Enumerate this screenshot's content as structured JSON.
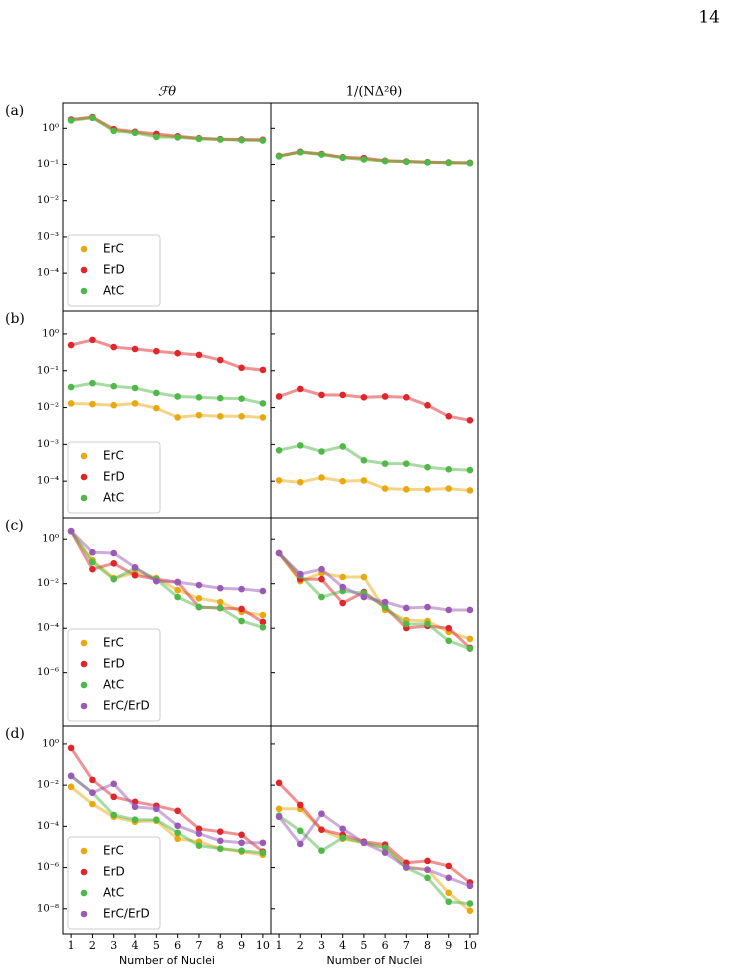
{
  "page_number": "14",
  "column_titles": [
    "ℱθ",
    "1/(NΔ²θ)"
  ],
  "chart_data": [
    {
      "type": "line",
      "label": "(a)",
      "log_y": true,
      "legend": "lower left",
      "x": [
        1,
        2,
        3,
        4,
        5,
        6,
        7,
        8,
        9,
        10
      ],
      "xlim": [
        0.62,
        10.38
      ],
      "ylim": [
        9e-06,
        5
      ],
      "yticks": [
        {
          "value": 1,
          "label": "10⁰"
        },
        {
          "value": 0.1,
          "label": "10⁻¹"
        },
        {
          "value": 0.01,
          "label": "10⁻²"
        },
        {
          "value": 0.001,
          "label": "10⁻³"
        },
        {
          "value": 0.0001,
          "label": "10⁻⁴"
        }
      ],
      "series": [
        {
          "name": "ErC",
          "color": "#e8a90f",
          "values": [
            1.7,
            2.0,
            0.88,
            0.77,
            0.62,
            0.58,
            0.52,
            0.5,
            0.48,
            0.47
          ]
        },
        {
          "name": "ErD",
          "color": "#e0262a",
          "values": [
            1.75,
            2.05,
            0.95,
            0.8,
            0.7,
            0.6,
            0.53,
            0.5,
            0.49,
            0.48
          ]
        },
        {
          "name": "AtC",
          "color": "#4fb848",
          "values": [
            1.65,
            1.95,
            0.85,
            0.75,
            0.58,
            0.56,
            0.51,
            0.49,
            0.47,
            0.46
          ]
        }
      ]
    },
    {
      "type": "line",
      "log_y": true,
      "x": [
        1,
        2,
        3,
        4,
        5,
        6,
        7,
        8,
        9,
        10
      ],
      "xlim": [
        0.62,
        10.38
      ],
      "ylim": [
        9e-06,
        5
      ],
      "yticks": [
        1,
        0.1,
        0.01,
        0.001,
        0.0001
      ],
      "series": [
        {
          "color": "#e8a90f",
          "values": [
            0.17,
            0.22,
            0.19,
            0.155,
            0.14,
            0.125,
            0.12,
            0.115,
            0.112,
            0.11
          ]
        },
        {
          "color": "#e0262a",
          "values": [
            0.172,
            0.225,
            0.195,
            0.158,
            0.15,
            0.127,
            0.121,
            0.116,
            0.113,
            0.111
          ]
        },
        {
          "color": "#4fb848",
          "values": [
            0.168,
            0.218,
            0.188,
            0.153,
            0.138,
            0.124,
            0.119,
            0.114,
            0.111,
            0.109
          ]
        }
      ]
    },
    {
      "type": "line",
      "label": "(b)",
      "log_y": true,
      "legend": "lower left",
      "x": [
        1,
        2,
        3,
        4,
        5,
        6,
        7,
        8,
        9,
        10
      ],
      "xlim": [
        0.62,
        10.38
      ],
      "ylim": [
        1e-05,
        4.2
      ],
      "yticks": [
        {
          "value": 1,
          "label": "10⁰"
        },
        {
          "value": 0.1,
          "label": "10⁻¹"
        },
        {
          "value": 0.01,
          "label": "10⁻²"
        },
        {
          "value": 0.001,
          "label": "10⁻³"
        },
        {
          "value": 0.0001,
          "label": "10⁻⁴"
        }
      ],
      "series": [
        {
          "name": "ErC",
          "color": "#e8a90f",
          "values": [
            0.013,
            0.0124,
            0.0116,
            0.013,
            0.0096,
            0.0054,
            0.0062,
            0.0058,
            0.0058,
            0.0054
          ]
        },
        {
          "name": "ErD",
          "color": "#e0262a",
          "values": [
            0.5,
            0.69,
            0.44,
            0.39,
            0.34,
            0.3,
            0.27,
            0.195,
            0.12,
            0.105
          ]
        },
        {
          "name": "AtC",
          "color": "#4fb848",
          "values": [
            0.036,
            0.046,
            0.038,
            0.034,
            0.025,
            0.02,
            0.019,
            0.018,
            0.0175,
            0.013
          ]
        }
      ]
    },
    {
      "type": "line",
      "log_y": true,
      "x": [
        1,
        2,
        3,
        4,
        5,
        6,
        7,
        8,
        9,
        10
      ],
      "xlim": [
        0.62,
        10.38
      ],
      "ylim": [
        1e-05,
        4.2
      ],
      "yticks": [
        1,
        0.1,
        0.01,
        0.001,
        0.0001
      ],
      "series": [
        {
          "color": "#e8a90f",
          "values": [
            0.000105,
            9.4e-05,
            0.000126,
            0.0001,
            0.000105,
            6.3e-05,
            6e-05,
            6e-05,
            6.3e-05,
            5.6e-05
          ]
        },
        {
          "color": "#e0262a",
          "values": [
            0.02,
            0.032,
            0.022,
            0.022,
            0.019,
            0.02,
            0.019,
            0.0115,
            0.0058,
            0.0045
          ]
        },
        {
          "color": "#4fb848",
          "values": [
            0.00069,
            0.00094,
            0.00064,
            0.00088,
            0.00037,
            0.0003,
            0.0003,
            0.00024,
            0.00021,
            0.0002
          ]
        }
      ]
    },
    {
      "type": "line",
      "label": "(c)",
      "log_y": true,
      "legend": "lower left",
      "x": [
        1,
        2,
        3,
        4,
        5,
        6,
        7,
        8,
        9,
        10
      ],
      "xlim": [
        0.62,
        10.38
      ],
      "ylim": [
        4e-09,
        9
      ],
      "yticks": [
        {
          "value": 1,
          "label": "10⁰"
        },
        {
          "value": 0.01,
          "label": "10⁻²"
        },
        {
          "value": 0.0001,
          "label": "10⁻⁴"
        },
        {
          "value": 1e-06,
          "label": "10⁻⁶"
        }
      ],
      "series": [
        {
          "name": "ErC",
          "color": "#e8a90f",
          "values": [
            2.3,
            0.115,
            0.018,
            0.03,
            0.018,
            0.0051,
            0.0022,
            0.0015,
            0.00054,
            0.00039
          ]
        },
        {
          "name": "ErD",
          "color": "#e0262a",
          "values": [
            2.3,
            0.045,
            0.083,
            0.024,
            0.016,
            0.0118,
            0.00089,
            0.00081,
            0.00073,
            0.00019
          ]
        },
        {
          "name": "AtC",
          "color": "#4fb848",
          "values": [
            2.3,
            0.093,
            0.016,
            0.05,
            0.016,
            0.0025,
            0.00089,
            0.00081,
            0.00021,
            0.00011
          ]
        },
        {
          "name": "ErC/ErD",
          "color": "#9b59b6",
          "values": [
            2.3,
            0.26,
            0.24,
            0.055,
            0.013,
            0.0118,
            0.0087,
            0.0063,
            0.0057,
            0.0047
          ]
        }
      ]
    },
    {
      "type": "line",
      "log_y": true,
      "x": [
        1,
        2,
        3,
        4,
        5,
        6,
        7,
        8,
        9,
        10
      ],
      "xlim": [
        0.62,
        10.38
      ],
      "ylim": [
        4e-09,
        9
      ],
      "yticks": [
        1,
        0.01,
        0.0001,
        1e-06
      ],
      "series": [
        {
          "color": "#e8a90f",
          "values": [
            0.24,
            0.013,
            0.03,
            0.02,
            0.02,
            0.00066,
            0.00023,
            0.00021,
            6.8e-05,
            3.3e-05
          ]
        },
        {
          "color": "#e0262a",
          "values": [
            0.24,
            0.016,
            0.016,
            0.00135,
            0.0042,
            0.00089,
            0.000102,
            0.000126,
            0.0001,
            1.3e-05
          ]
        },
        {
          "color": "#4fb848",
          "values": [
            0.24,
            0.024,
            0.0025,
            0.0047,
            0.0038,
            0.00089,
            0.000155,
            0.000155,
            2.7e-05,
            1.2e-05
          ]
        },
        {
          "color": "#9b59b6",
          "values": [
            0.24,
            0.027,
            0.045,
            0.0071,
            0.0025,
            0.0015,
            0.00081,
            0.00089,
            0.00066,
            0.00066
          ]
        }
      ]
    },
    {
      "type": "line",
      "label": "(d)",
      "log_y": true,
      "legend": "lower left",
      "x": [
        1,
        2,
        3,
        4,
        5,
        6,
        7,
        8,
        9,
        10
      ],
      "xlim": [
        0.62,
        10.38
      ],
      "ylim": [
        6e-10,
        7.4
      ],
      "yticks": [
        {
          "value": 1,
          "label": "10⁰"
        },
        {
          "value": 0.01,
          "label": "10⁻²"
        },
        {
          "value": 0.0001,
          "label": "10⁻⁴"
        },
        {
          "value": 1e-06,
          "label": "10⁻⁶"
        },
        {
          "value": 1e-08,
          "label": "10⁻⁸"
        }
      ],
      "xticks": [
        1,
        2,
        3,
        4,
        5,
        6,
        7,
        8,
        9,
        10
      ],
      "xlabel": "Number of Nuclei",
      "series": [
        {
          "name": "ErC",
          "color": "#e8a90f",
          "values": [
            0.0083,
            0.0012,
            0.00029,
            0.000166,
            0.000187,
            2.5e-05,
            1.8e-05,
            8.3e-06,
            5.9e-06,
            4.2e-06
          ]
        },
        {
          "name": "ErD",
          "color": "#e0262a",
          "values": [
            0.64,
            0.018,
            0.0027,
            0.00155,
            0.001,
            0.00057,
            7.6e-05,
            5.5e-05,
            3.9e-05,
            5.9e-06
          ]
        },
        {
          "name": "AtC",
          "color": "#4fb848",
          "values": [
            0.028,
            0.0043,
            0.00036,
            0.00021,
            0.00021,
            4.9e-05,
            1.15e-05,
            8.3e-06,
            6.6e-06,
            5.3e-06
          ]
        },
        {
          "name": "ErC/ErD",
          "color": "#9b59b6",
          "values": [
            0.028,
            0.0043,
            0.0116,
            0.00089,
            0.00071,
            0.000107,
            4.4e-05,
            2e-05,
            1.6e-05,
            1.6e-05
          ]
        }
      ]
    },
    {
      "type": "line",
      "log_y": true,
      "x": [
        1,
        2,
        3,
        4,
        5,
        6,
        7,
        8,
        9,
        10
      ],
      "xlim": [
        0.62,
        10.38
      ],
      "ylim": [
        6e-10,
        7.4
      ],
      "yticks": [
        1,
        0.01,
        0.0001,
        1e-06,
        1e-08
      ],
      "xticks": [
        1,
        2,
        3,
        4,
        5,
        6,
        7,
        8,
        9,
        10
      ],
      "xlabel": "Number of Nuclei",
      "series": [
        {
          "color": "#e8a90f",
          "values": [
            0.00071,
            0.00071,
            6.9e-05,
            2.5e-05,
            1.6e-05,
            9.2e-06,
            1.1e-06,
            7.9e-07,
            6e-08,
            8.1e-09
          ]
        },
        {
          "color": "#e0262a",
          "values": [
            0.0129,
            0.0011,
            6.9e-05,
            3.9e-05,
            1.8e-05,
            1.3e-05,
            1.7e-06,
            2.1e-06,
            1.2e-06,
            1.9e-07
          ]
        },
        {
          "color": "#4fb848",
          "values": [
            0.00033,
            6.1e-05,
            6.6e-06,
            2.8e-05,
            1.6e-05,
            9.2e-06,
            1e-06,
            3.2e-07,
            2.2e-08,
            1.8e-08
          ]
        },
        {
          "color": "#9b59b6",
          "values": [
            0.00029,
            1.4e-05,
            0.00041,
            7.6e-05,
            1.6e-05,
            5.3e-06,
            1e-06,
            7.9e-07,
            3.2e-07,
            1.3e-07
          ]
        }
      ]
    }
  ]
}
